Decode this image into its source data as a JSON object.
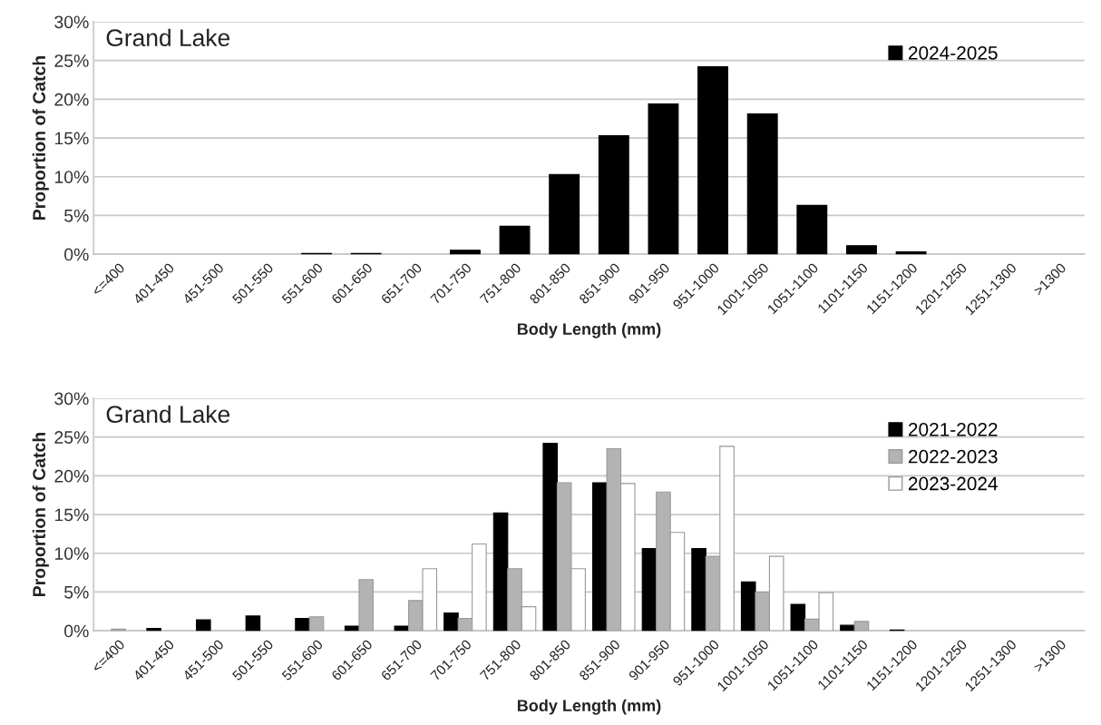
{
  "chart_data": [
    {
      "type": "bar",
      "title": "Grand Lake",
      "xlabel": "Body Length (mm)",
      "ylabel": "Proportion of Catch",
      "categories": [
        "<=400",
        "401-450",
        "451-500",
        "501-550",
        "551-600",
        "601-650",
        "651-700",
        "701-750",
        "751-800",
        "801-850",
        "851-900",
        "901-950",
        "951-1000",
        "1001-1050",
        "1051-1100",
        "1101-1150",
        "1151-1200",
        "1201-1250",
        "1251-1300",
        ">1300"
      ],
      "series": [
        {
          "name": "2024-2025",
          "color": "#000000",
          "values": [
            0,
            0,
            0,
            0,
            0.1,
            0.1,
            0,
            0.5,
            3.6,
            10.3,
            15.3,
            19.4,
            24.2,
            18.1,
            6.3,
            1.1,
            0.3,
            0,
            0,
            0
          ]
        }
      ],
      "ylim": [
        0,
        30
      ],
      "yticks": [
        {
          "value": 0,
          "label": "0%"
        },
        {
          "value": 5,
          "label": "5%"
        },
        {
          "value": 10,
          "label": "10%"
        },
        {
          "value": 15,
          "label": "15%"
        },
        {
          "value": 20,
          "label": "20%"
        },
        {
          "value": 25,
          "label": "25%"
        },
        {
          "value": 30,
          "label": "30%"
        }
      ],
      "grid": "y",
      "legend": "top right"
    },
    {
      "type": "bar",
      "title": "Grand Lake",
      "xlabel": "Body Length (mm)",
      "ylabel": "Proportion of Catch",
      "categories": [
        "<=400",
        "401-450",
        "451-500",
        "501-550",
        "551-600",
        "601-650",
        "651-700",
        "701-750",
        "751-800",
        "801-850",
        "851-900",
        "901-950",
        "951-1000",
        "1001-1050",
        "1051-1100",
        "1101-1150",
        "1151-1200",
        "1201-1250",
        "1251-1300",
        ">1300"
      ],
      "series": [
        {
          "name": "2021-2022",
          "color": "#000000",
          "values": [
            0,
            0.3,
            1.4,
            1.9,
            1.6,
            0.6,
            0.6,
            2.3,
            15.2,
            24.2,
            19.1,
            10.6,
            10.6,
            6.3,
            3.4,
            0.7,
            0.1,
            0,
            0,
            0
          ]
        },
        {
          "name": "2022-2023",
          "color": "#b3b3b3",
          "values": [
            0.2,
            0,
            0,
            0,
            1.8,
            6.6,
            3.9,
            1.6,
            8.0,
            19.1,
            23.5,
            17.9,
            9.6,
            5.0,
            1.5,
            1.2,
            null,
            0,
            0,
            0
          ]
        },
        {
          "name": "2023-2024",
          "color": "#ffffff",
          "values": [
            0,
            0,
            0,
            0,
            0,
            0,
            8.0,
            11.2,
            3.1,
            8.0,
            19.0,
            12.7,
            23.8,
            9.6,
            4.9,
            0,
            0,
            0,
            0,
            0
          ]
        }
      ],
      "ylim": [
        0,
        30
      ],
      "yticks": [
        {
          "value": 0,
          "label": "0%"
        },
        {
          "value": 5,
          "label": "5%"
        },
        {
          "value": 10,
          "label": "10%"
        },
        {
          "value": 15,
          "label": "15%"
        },
        {
          "value": 20,
          "label": "20%"
        },
        {
          "value": 25,
          "label": "25%"
        },
        {
          "value": 30,
          "label": "30%"
        }
      ],
      "grid": "y",
      "legend": "top right"
    }
  ]
}
